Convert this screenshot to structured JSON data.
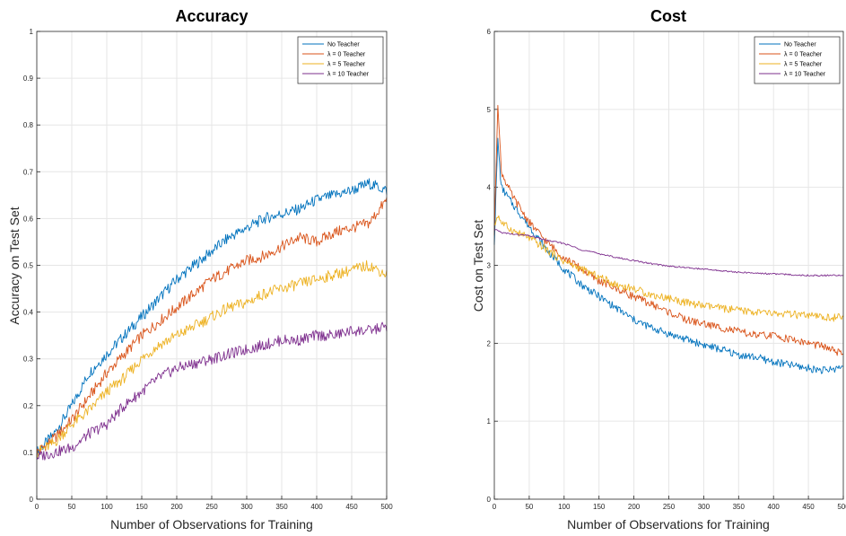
{
  "chart_data": [
    {
      "type": "line",
      "title": "Accuracy",
      "xlabel": "Number of Observations for Training",
      "ylabel": "Accuracy on Test Set",
      "xlim": [
        0,
        500
      ],
      "ylim": [
        0,
        1
      ],
      "xticks": [
        "0",
        "50",
        "100",
        "150",
        "200",
        "250",
        "300",
        "350",
        "400",
        "450",
        "500"
      ],
      "yticks": [
        "0",
        "0.1",
        "0.2",
        "0.3",
        "0.4",
        "0.5",
        "0.6",
        "0.7",
        "0.8",
        "0.9",
        "1"
      ],
      "grid": true,
      "legend_position": "top-right",
      "x": [
        0,
        25,
        50,
        75,
        100,
        125,
        150,
        175,
        200,
        225,
        250,
        275,
        300,
        325,
        350,
        375,
        400,
        425,
        450,
        475,
        500
      ],
      "series": [
        {
          "name": "No Teacher",
          "color": "#0072BD",
          "values": [
            0.1,
            0.14,
            0.2,
            0.27,
            0.31,
            0.35,
            0.39,
            0.43,
            0.47,
            0.5,
            0.53,
            0.56,
            0.58,
            0.6,
            0.61,
            0.62,
            0.64,
            0.65,
            0.66,
            0.675,
            0.66
          ]
        },
        {
          "name": "λ = 0 Teacher",
          "color": "#D95319",
          "values": [
            0.1,
            0.13,
            0.17,
            0.22,
            0.27,
            0.31,
            0.35,
            0.38,
            0.41,
            0.44,
            0.47,
            0.49,
            0.51,
            0.52,
            0.54,
            0.56,
            0.55,
            0.57,
            0.58,
            0.59,
            0.64
          ]
        },
        {
          "name": "λ = 5 Teacher",
          "color": "#EDB120",
          "values": [
            0.1,
            0.12,
            0.16,
            0.19,
            0.23,
            0.26,
            0.3,
            0.33,
            0.35,
            0.37,
            0.39,
            0.41,
            0.42,
            0.44,
            0.45,
            0.46,
            0.47,
            0.48,
            0.49,
            0.5,
            0.48
          ]
        },
        {
          "name": "λ = 10 Teacher",
          "color": "#7E2F8E",
          "values": [
            0.09,
            0.1,
            0.11,
            0.14,
            0.16,
            0.2,
            0.23,
            0.26,
            0.28,
            0.29,
            0.3,
            0.31,
            0.32,
            0.33,
            0.34,
            0.34,
            0.35,
            0.35,
            0.36,
            0.36,
            0.37
          ]
        }
      ]
    },
    {
      "type": "line",
      "title": "Cost",
      "xlabel": "Number of Observations for Training",
      "ylabel": "Cost on Test Set",
      "xlim": [
        0,
        500
      ],
      "ylim": [
        0,
        6
      ],
      "xticks": [
        "0",
        "50",
        "100",
        "150",
        "200",
        "250",
        "300",
        "350",
        "400",
        "450",
        "500"
      ],
      "yticks": [
        "0",
        "1",
        "2",
        "3",
        "4",
        "5",
        "6"
      ],
      "grid": true,
      "legend_position": "top-right",
      "x": [
        0,
        5,
        10,
        25,
        50,
        75,
        100,
        125,
        150,
        175,
        200,
        225,
        250,
        275,
        300,
        325,
        350,
        375,
        400,
        425,
        450,
        475,
        500
      ],
      "series": [
        {
          "name": "No Teacher",
          "color": "#0072BD",
          "values": [
            3.3,
            4.6,
            4.0,
            3.8,
            3.5,
            3.2,
            2.95,
            2.75,
            2.6,
            2.45,
            2.3,
            2.2,
            2.12,
            2.05,
            1.98,
            1.92,
            1.85,
            1.82,
            1.76,
            1.72,
            1.68,
            1.65,
            1.7
          ]
        },
        {
          "name": "λ = 0 Teacher",
          "color": "#D95319",
          "values": [
            3.4,
            5.1,
            4.2,
            3.9,
            3.55,
            3.3,
            3.1,
            2.95,
            2.8,
            2.7,
            2.6,
            2.5,
            2.4,
            2.3,
            2.25,
            2.2,
            2.15,
            2.1,
            2.1,
            2.05,
            2.0,
            1.95,
            1.85
          ]
        },
        {
          "name": "λ = 5 Teacher",
          "color": "#EDB120",
          "values": [
            3.5,
            3.65,
            3.55,
            3.45,
            3.35,
            3.2,
            3.05,
            2.95,
            2.85,
            2.75,
            2.7,
            2.62,
            2.58,
            2.52,
            2.48,
            2.45,
            2.42,
            2.4,
            2.38,
            2.37,
            2.35,
            2.33,
            2.33
          ]
        },
        {
          "name": "λ = 10 Teacher",
          "color": "#7E2F8E",
          "values": [
            3.45,
            3.45,
            3.42,
            3.4,
            3.38,
            3.32,
            3.28,
            3.2,
            3.15,
            3.1,
            3.06,
            3.02,
            2.99,
            2.97,
            2.95,
            2.93,
            2.91,
            2.9,
            2.89,
            2.88,
            2.87,
            2.87,
            2.87
          ]
        }
      ]
    }
  ]
}
